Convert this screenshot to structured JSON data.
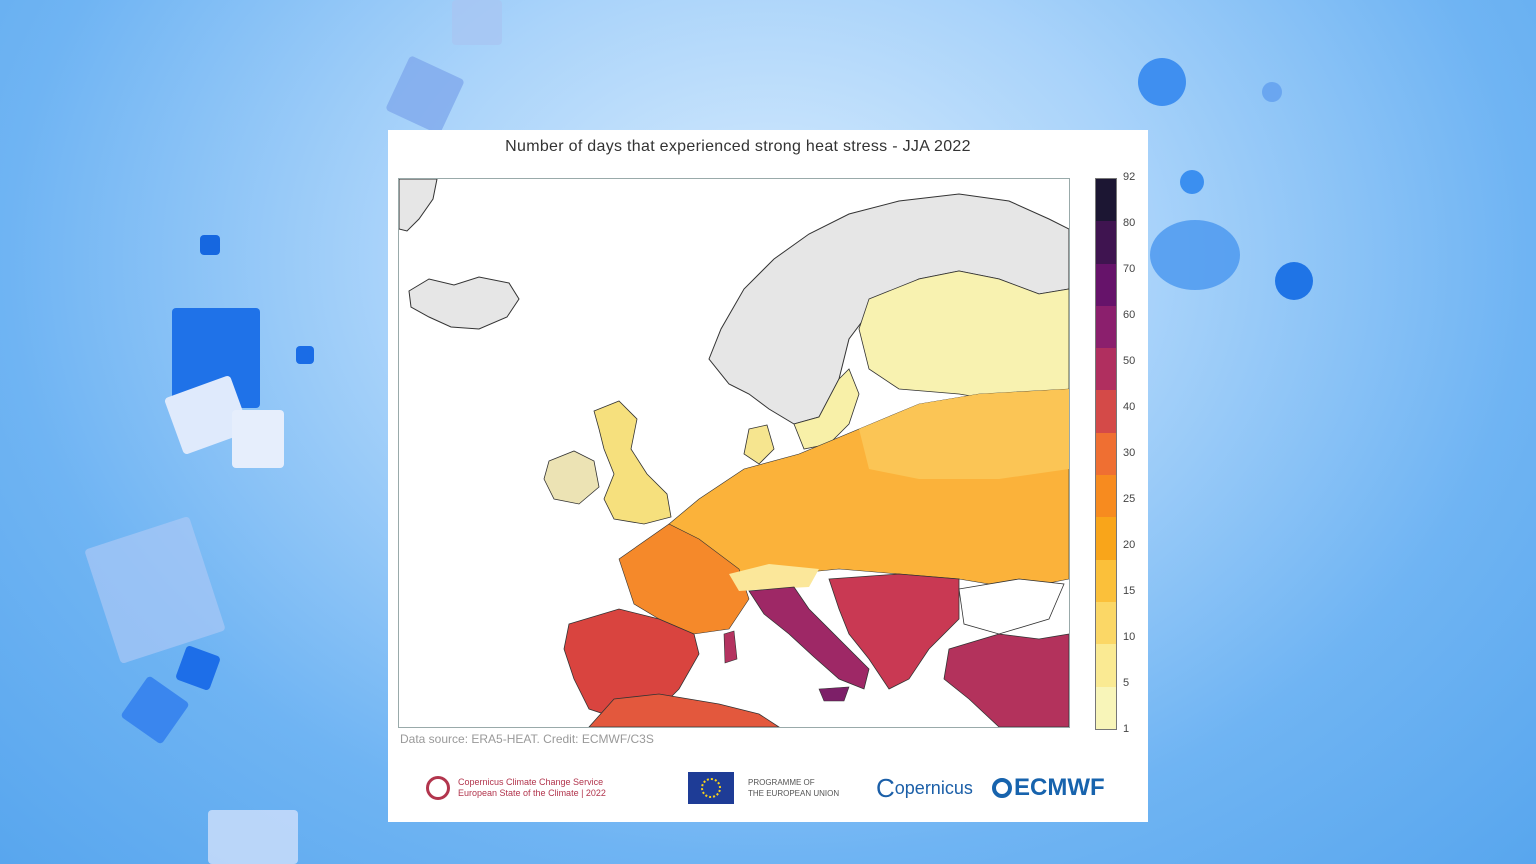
{
  "map": {
    "title": "Number of days that experienced strong heat stress - JJA 2022",
    "source": "Data source: ERA5-HEAT. Credit: ECMWF/C3S",
    "legend": {
      "ticks": [
        "92",
        "80",
        "70",
        "60",
        "50",
        "40",
        "30",
        "25",
        "20",
        "15",
        "10",
        "5",
        "1"
      ],
      "colors": [
        "#1c1633",
        "#3f1450",
        "#66136a",
        "#8b1f6d",
        "#b02f5f",
        "#d44a48",
        "#ef6f32",
        "#f78b1f",
        "#f9a51a",
        "#fbc03a",
        "#fbd766",
        "#faea93",
        "#f8f5b9"
      ]
    }
  },
  "logos": {
    "copernicus_line1": "Copernicus Climate Change Service",
    "copernicus_line2": "European State of the Climate | 2022",
    "eu_line1": "PROGRAMME OF",
    "eu_line2": "THE EUROPEAN UNION",
    "copernicus_brand": "opernicus",
    "ecmwf": "ECMWF"
  }
}
